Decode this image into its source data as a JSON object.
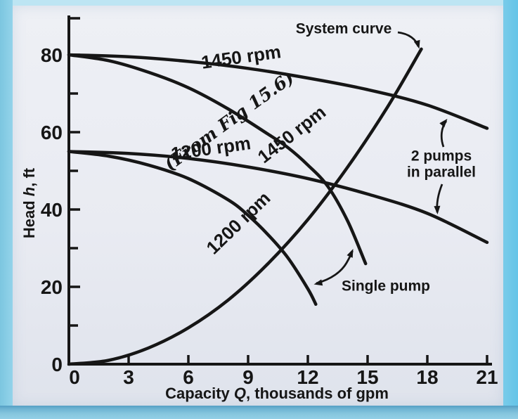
{
  "colors": {
    "photo_background": "#9ed8ec",
    "paper": "#e9ebf2",
    "ink": "#161616"
  },
  "chart_data": {
    "type": "line",
    "title": "",
    "xlabel": "Capacity Q, thousands of gpm",
    "xlabel_parts": [
      "Capacity ",
      "Q",
      ", thousands of gpm"
    ],
    "ylabel": "Head h, ft",
    "ylabel_parts": [
      "Head ",
      "h",
      ", ft"
    ],
    "xlim": [
      0,
      21
    ],
    "ylim": [
      0,
      80
    ],
    "x_ticks": [
      0,
      3,
      6,
      9,
      12,
      15,
      18,
      21
    ],
    "y_ticks_major": [
      0,
      20,
      40,
      60,
      80
    ],
    "y_ticks_minor": [
      10,
      30,
      50,
      70
    ],
    "grid": false,
    "x_unit": "thousands of gpm",
    "y_unit": "ft",
    "series": [
      {
        "id": "pump-1450-parallel",
        "name": "1450 rpm - 2 pumps in parallel",
        "label": "1450 rpm",
        "points": [
          [
            0,
            80
          ],
          [
            3,
            79.5
          ],
          [
            6,
            78.3
          ],
          [
            9,
            76.5
          ],
          [
            12,
            74
          ],
          [
            15,
            71
          ],
          [
            18,
            67
          ],
          [
            21,
            61
          ]
        ]
      },
      {
        "id": "pump-1450-single",
        "name": "1450 rpm - single pump (from Fig 15.6)",
        "label": "1450 rpm",
        "points": [
          [
            0,
            80
          ],
          [
            2,
            78.5
          ],
          [
            4,
            75.5
          ],
          [
            6,
            71.5
          ],
          [
            8,
            66
          ],
          [
            10,
            59.5
          ],
          [
            11,
            56
          ],
          [
            12,
            51.5
          ],
          [
            13,
            46
          ],
          [
            14,
            37
          ],
          [
            14.9,
            26
          ]
        ]
      },
      {
        "id": "pump-1200-parallel",
        "name": "1200 rpm - 2 pumps in parallel",
        "label": "1200 rpm",
        "points": [
          [
            0,
            55
          ],
          [
            3,
            54.5
          ],
          [
            6,
            53.2
          ],
          [
            9,
            51
          ],
          [
            12,
            48
          ],
          [
            15,
            44
          ],
          [
            18,
            39
          ],
          [
            21,
            31.5
          ]
        ]
      },
      {
        "id": "pump-1200-single",
        "name": "1200 rpm - single pump",
        "label": "1200 rpm",
        "points": [
          [
            0,
            55
          ],
          [
            2,
            53.8
          ],
          [
            4,
            51.5
          ],
          [
            6,
            48
          ],
          [
            8,
            42.5
          ],
          [
            9,
            38.5
          ],
          [
            10,
            33.5
          ],
          [
            11,
            27.5
          ],
          [
            12,
            19.5
          ],
          [
            12.4,
            15.5
          ]
        ]
      },
      {
        "id": "system-curve",
        "name": "System curve",
        "label": "System curve",
        "points": [
          [
            0,
            0
          ],
          [
            2,
            1
          ],
          [
            4,
            4.2
          ],
          [
            6,
            9.4
          ],
          [
            8,
            16.6
          ],
          [
            10,
            26
          ],
          [
            12,
            37.4
          ],
          [
            14,
            51
          ],
          [
            16,
            66.5
          ],
          [
            17.7,
            81.5
          ]
        ]
      }
    ],
    "annotations": {
      "two_pumps_lines": [
        "2 pumps",
        "in parallel"
      ],
      "single_pump": "Single pump",
      "from_fig": "(From Fig 15.6)"
    }
  }
}
